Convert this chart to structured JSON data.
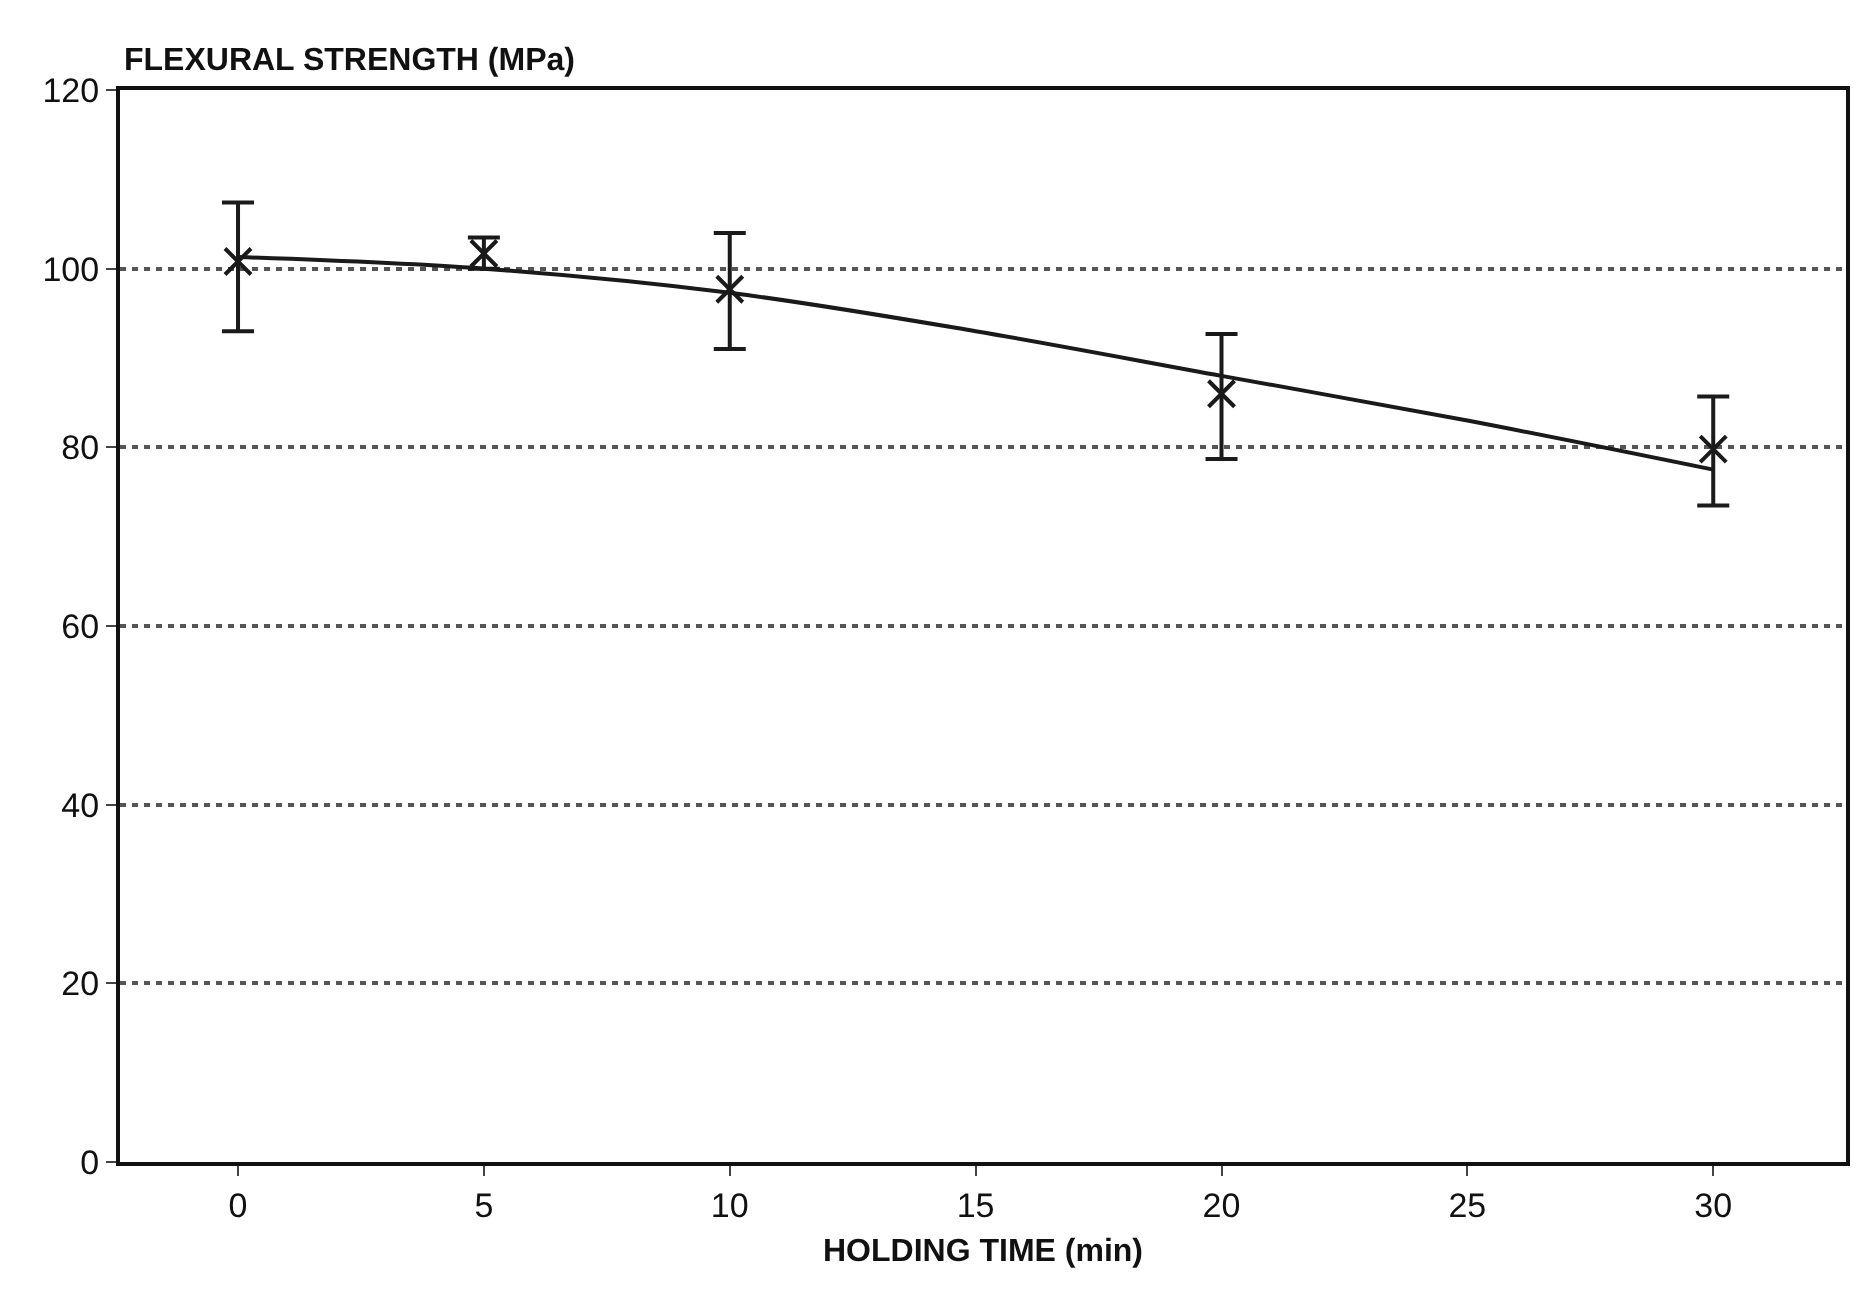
{
  "chart_data": {
    "type": "scatter",
    "ylabel": "FLEXURAL STRENGTH (MPa)",
    "xlabel": "HOLDING TIME (min)",
    "series": [
      {
        "color": "#1a1a1a",
        "x": [
          0,
          5,
          10,
          20,
          30
        ],
        "values": [
          100.8,
          101.7,
          97.7,
          86,
          79.8
        ],
        "errors": [
          [
            93,
            107.4
          ],
          [
            100,
            103.5
          ],
          [
            91,
            104
          ],
          [
            78.7,
            92.7
          ],
          [
            73.5,
            85.7
          ]
        ],
        "marker": "cross"
      },
      {
        "type": "line",
        "color": "#1a1a1a",
        "x": [
          0,
          5,
          10,
          15,
          20,
          25,
          30
        ],
        "values": [
          101.3,
          100,
          97.3,
          93,
          88,
          83,
          77.5
        ],
        "marker": "none",
        "line_style": "solid"
      }
    ],
    "xlim": [
      -2.4,
      32.7
    ],
    "ylim": [
      0,
      120
    ],
    "xticks": [
      0,
      5,
      10,
      15,
      20,
      25,
      30
    ],
    "yticks": [
      0,
      20,
      40,
      60,
      80,
      100,
      120
    ],
    "grid": "y"
  }
}
